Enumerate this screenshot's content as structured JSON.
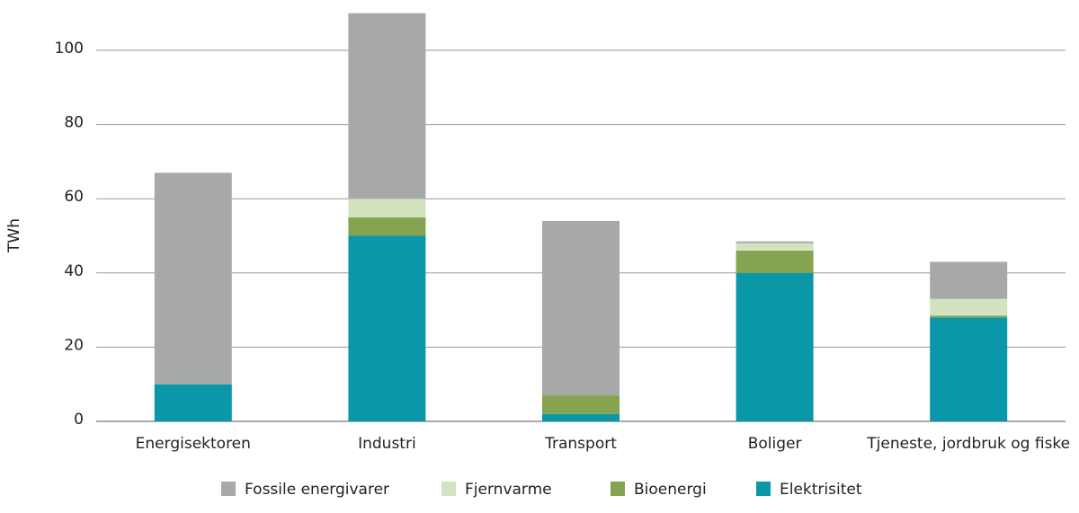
{
  "chart_data": {
    "type": "stacked_bar",
    "y_label": "TWh",
    "categories": [
      "Energisektoren",
      "Industri",
      "Transport",
      "Boliger",
      "Tjeneste, jordbruk og fiske"
    ],
    "series": [
      {
        "name": "Fossile energivarer",
        "color": "#a7a9a8",
        "values": [
          57,
          50,
          47,
          0.5,
          10
        ]
      },
      {
        "name": "Fjernvarme",
        "color": "#d3e3bf",
        "values": [
          0,
          5,
          0,
          2,
          4.5
        ]
      },
      {
        "name": "Bioenergi",
        "color": "#86a34f",
        "values": [
          0,
          5,
          5,
          6,
          0.5
        ]
      },
      {
        "name": "Elektrisitet",
        "color": "#0a97a8",
        "values": [
          10,
          50,
          2,
          40,
          28
        ]
      }
    ],
    "ylim": [
      0,
      110
    ],
    "yticks": [
      0,
      20,
      40,
      60,
      80,
      100
    ],
    "grid": true,
    "legend": "bottom"
  }
}
